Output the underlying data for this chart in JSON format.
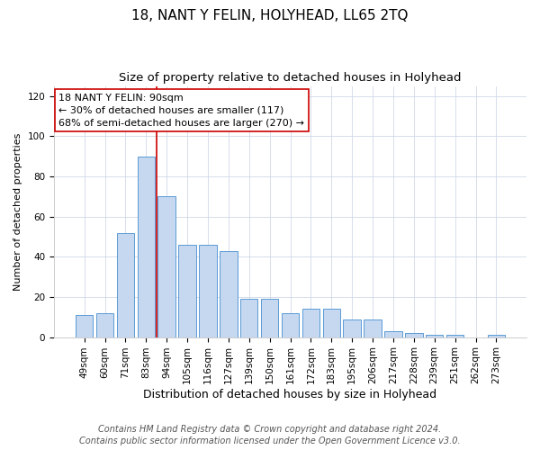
{
  "title": "18, NANT Y FELIN, HOLYHEAD, LL65 2TQ",
  "subtitle": "Size of property relative to detached houses in Holyhead",
  "xlabel": "Distribution of detached houses by size in Holyhead",
  "ylabel": "Number of detached properties",
  "categories": [
    "49sqm",
    "60sqm",
    "71sqm",
    "83sqm",
    "94sqm",
    "105sqm",
    "116sqm",
    "127sqm",
    "139sqm",
    "150sqm",
    "161sqm",
    "172sqm",
    "183sqm",
    "195sqm",
    "206sqm",
    "217sqm",
    "228sqm",
    "239sqm",
    "251sqm",
    "262sqm",
    "273sqm"
  ],
  "values": [
    11,
    12,
    52,
    90,
    70,
    46,
    46,
    43,
    19,
    19,
    12,
    14,
    14,
    9,
    9,
    3,
    2,
    1,
    1,
    0,
    1
  ],
  "bar_color": "#c5d8f0",
  "bar_edge_color": "#5b9bd5",
  "vline_color": "#cc0000",
  "annotation_text": "18 NANT Y FELIN: 90sqm\n← 30% of detached houses are smaller (117)\n68% of semi-detached houses are larger (270) →",
  "annotation_box_color": "#ffffff",
  "annotation_box_edge": "#cc0000",
  "ylim": [
    0,
    125
  ],
  "yticks": [
    0,
    20,
    40,
    60,
    80,
    100,
    120
  ],
  "footer_line1": "Contains HM Land Registry data © Crown copyright and database right 2024.",
  "footer_line2": "Contains public sector information licensed under the Open Government Licence v3.0.",
  "bg_color": "#ffffff",
  "grid_color": "#d0d8e8",
  "title_fontsize": 11,
  "subtitle_fontsize": 9.5,
  "xlabel_fontsize": 9,
  "ylabel_fontsize": 8,
  "tick_fontsize": 7.5,
  "annotation_fontsize": 8,
  "footer_fontsize": 7
}
